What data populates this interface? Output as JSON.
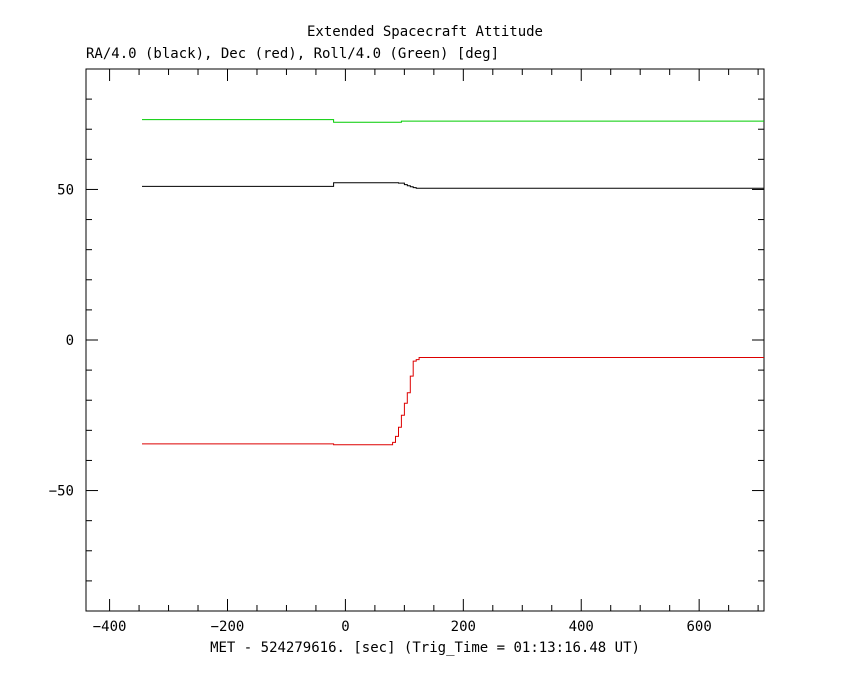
{
  "chart_data": {
    "type": "line",
    "title": "Extended Spacecraft Attitude",
    "subtitle": "RA/4.0 (black), Dec (red), Roll/4.0 (Green) [deg]",
    "xlabel": "MET - 524279616. [sec] (Trig_Time = 01:13:16.48 UT)",
    "ylabel": "",
    "xlim": [
      -440,
      710
    ],
    "ylim": [
      -90,
      90
    ],
    "xticks": [
      -400,
      -200,
      0,
      200,
      400,
      600
    ],
    "xtick_labels": [
      "−400",
      "−200",
      "0",
      "200",
      "400",
      "600"
    ],
    "yticks": [
      -50,
      0,
      50
    ],
    "ytick_labels": [
      "−50",
      "0",
      "50"
    ],
    "grid": false,
    "series": [
      {
        "color": "#00cc00",
        "x": [
          -345,
          -20,
          -20,
          95,
          95,
          710
        ],
        "y": [
          73.2,
          73.2,
          72.3,
          72.3,
          72.7,
          72.7
        ]
      },
      {
        "color": "#000000",
        "x": [
          -345,
          -20,
          -20,
          80,
          90,
          100,
          105,
          110,
          115,
          120,
          710
        ],
        "y": [
          51,
          51,
          52.2,
          52.2,
          52.1,
          51.6,
          51.2,
          50.9,
          50.6,
          50.4,
          50.3
        ]
      },
      {
        "color": "#dd0000",
        "x": [
          -345,
          -20,
          75,
          80,
          85,
          90,
          95,
          100,
          105,
          110,
          115,
          120,
          125,
          710
        ],
        "y": [
          -34.5,
          -34.8,
          -34.8,
          -34,
          -32,
          -29,
          -25,
          -21,
          -17.5,
          -12,
          -7,
          -6.5,
          -5.8,
          -5.8
        ]
      }
    ]
  }
}
